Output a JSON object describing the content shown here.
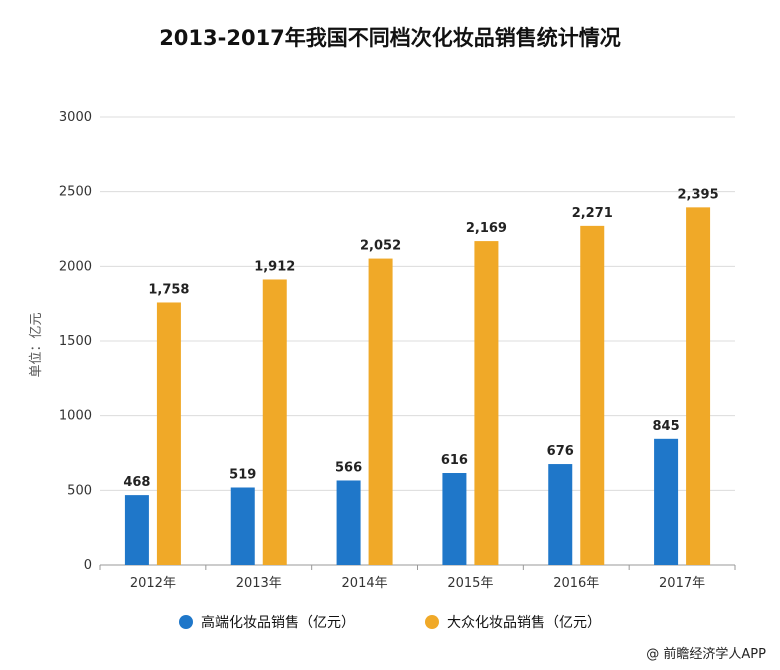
{
  "chart_data": {
    "type": "bar",
    "title": "2013-2017年我国不同档次化妆品销售统计情况",
    "ylabel": "单位：亿元",
    "xlabel": "",
    "ylim": [
      0,
      3000
    ],
    "yticks": [
      0,
      500,
      1000,
      1500,
      2000,
      2500,
      3000
    ],
    "grid": true,
    "legend_position": "bottom",
    "categories": [
      "2012年",
      "2013年",
      "2014年",
      "2015年",
      "2016年",
      "2017年"
    ],
    "series": [
      {
        "name": "高端化妆品销售（亿元）",
        "color": "#1f77c9",
        "values": [
          468,
          519,
          566,
          616,
          676,
          845
        ],
        "labels": [
          "468",
          "519",
          "566",
          "616",
          "676",
          "845"
        ]
      },
      {
        "name": "大众化妆品销售（亿元）",
        "color": "#f0a928",
        "values": [
          1758,
          1912,
          2052,
          2169,
          2271,
          2395
        ],
        "labels": [
          "1,758",
          "1,912",
          "2,052",
          "2,169",
          "2,271",
          "2,395"
        ]
      }
    ]
  },
  "source": "@ 前瞻经济学人APP"
}
